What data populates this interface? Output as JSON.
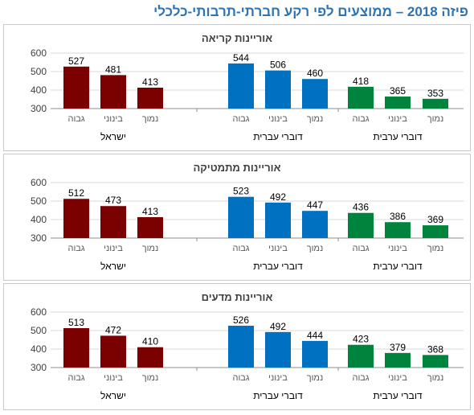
{
  "title": "פיזה 2018 – ממוצעים לפי רקע חברתי-תרבותי-כלכלי",
  "colors": {
    "israel": "#7b0000",
    "hebrew": "#0070c0",
    "arabic": "#00843d",
    "title": "#2e74b5"
  },
  "chart_data": [
    {
      "type": "bar",
      "title": "אוריינות קריאה",
      "ylim": [
        300,
        600
      ],
      "yticks": [
        300,
        400,
        500,
        600
      ],
      "grid": true,
      "groups": [
        {
          "name": "ישראל",
          "color": "#7b0000",
          "categories": [
            "גבוה",
            "בינוני",
            "נמוך"
          ],
          "values": [
            527,
            481,
            413
          ]
        },
        {
          "name": "דוברי עברית",
          "color": "#0070c0",
          "categories": [
            "גבוה",
            "בינוני",
            "נמוך"
          ],
          "values": [
            544,
            506,
            460
          ]
        },
        {
          "name": "דוברי ערבית",
          "color": "#00843d",
          "categories": [
            "גבוה",
            "בינוני",
            "נמוך"
          ],
          "values": [
            418,
            365,
            353
          ]
        }
      ]
    },
    {
      "type": "bar",
      "title": "אוריינות מתמטיקה",
      "ylim": [
        300,
        600
      ],
      "yticks": [
        300,
        400,
        500,
        600
      ],
      "grid": true,
      "groups": [
        {
          "name": "ישראל",
          "color": "#7b0000",
          "categories": [
            "גבוה",
            "בינוני",
            "נמוך"
          ],
          "values": [
            512,
            473,
            413
          ]
        },
        {
          "name": "דוברי עברית",
          "color": "#0070c0",
          "categories": [
            "גבוה",
            "בינוני",
            "נמוך"
          ],
          "values": [
            523,
            492,
            447
          ]
        },
        {
          "name": "דוברי ערבית",
          "color": "#00843d",
          "categories": [
            "גבוה",
            "בינוני",
            "נמוך"
          ],
          "values": [
            436,
            386,
            369
          ]
        }
      ]
    },
    {
      "type": "bar",
      "title": "אוריינות מדעים",
      "ylim": [
        300,
        600
      ],
      "yticks": [
        300,
        400,
        500,
        600
      ],
      "grid": true,
      "groups": [
        {
          "name": "ישראל",
          "color": "#7b0000",
          "categories": [
            "גבוה",
            "בינוני",
            "נמוך"
          ],
          "values": [
            513,
            472,
            410
          ]
        },
        {
          "name": "דוברי עברית",
          "color": "#0070c0",
          "categories": [
            "גבוה",
            "בינוני",
            "נמוך"
          ],
          "values": [
            526,
            492,
            444
          ]
        },
        {
          "name": "דוברי ערבית",
          "color": "#00843d",
          "categories": [
            "גבוה",
            "בינוני",
            "נמוך"
          ],
          "values": [
            423,
            379,
            368
          ]
        }
      ]
    }
  ]
}
